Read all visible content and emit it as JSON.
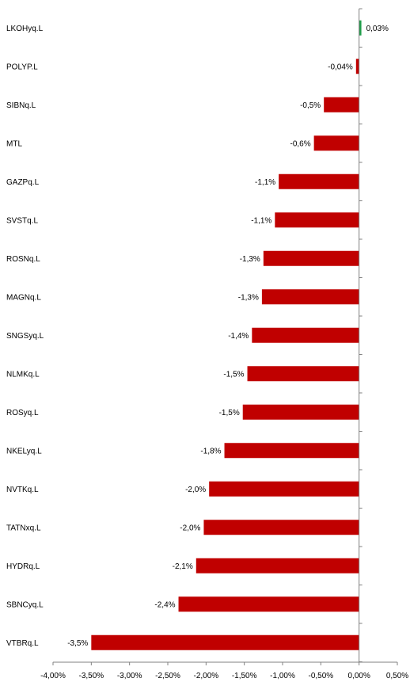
{
  "chart_data": {
    "type": "bar",
    "orientation": "horizontal",
    "categories": [
      "LKOHyq.L",
      "POLYP.L",
      "SIBNq.L",
      "MTL",
      "GAZPq.L",
      "SVSTq.L",
      "ROSNq.L",
      "MAGNq.L",
      "SNGSyq.L",
      "NLMKq.L",
      "ROSyq.L",
      "NKELyq.L",
      "NVTKq.L",
      "TATNxq.L",
      "HYDRq.L",
      "SBNCyq.L",
      "VTBRq.L"
    ],
    "values": [
      0.03,
      -0.04,
      -0.46,
      -0.59,
      -1.05,
      -1.1,
      -1.25,
      -1.27,
      -1.4,
      -1.46,
      -1.52,
      -1.76,
      -1.96,
      -2.03,
      -2.13,
      -2.36,
      -3.5
    ],
    "value_labels": [
      "0,03%",
      "-0,04%",
      "-0,5%",
      "-0,6%",
      "-1,1%",
      "-1,1%",
      "-1,3%",
      "-1,3%",
      "-1,4%",
      "-1,5%",
      "-1,5%",
      "-1,8%",
      "-2,0%",
      "-2,0%",
      "-2,1%",
      "-2,4%",
      "-3,5%"
    ],
    "xlim": [
      -4.0,
      0.5
    ],
    "x_ticks": [
      "-4,00%",
      "-3,50%",
      "-3,00%",
      "-2,50%",
      "-2,00%",
      "-1,50%",
      "-1,00%",
      "-0,50%",
      "0,00%",
      "0,50%"
    ],
    "tick_values": [
      -4.0,
      -3.5,
      -3.0,
      -2.5,
      -2.0,
      -1.5,
      -1.0,
      -0.5,
      0.0,
      0.5
    ],
    "colors": {
      "positive": "#1f9e4a",
      "negative": "#c00000"
    },
    "title": "",
    "xlabel": "",
    "ylabel": "",
    "grid": false,
    "legend": "none"
  }
}
